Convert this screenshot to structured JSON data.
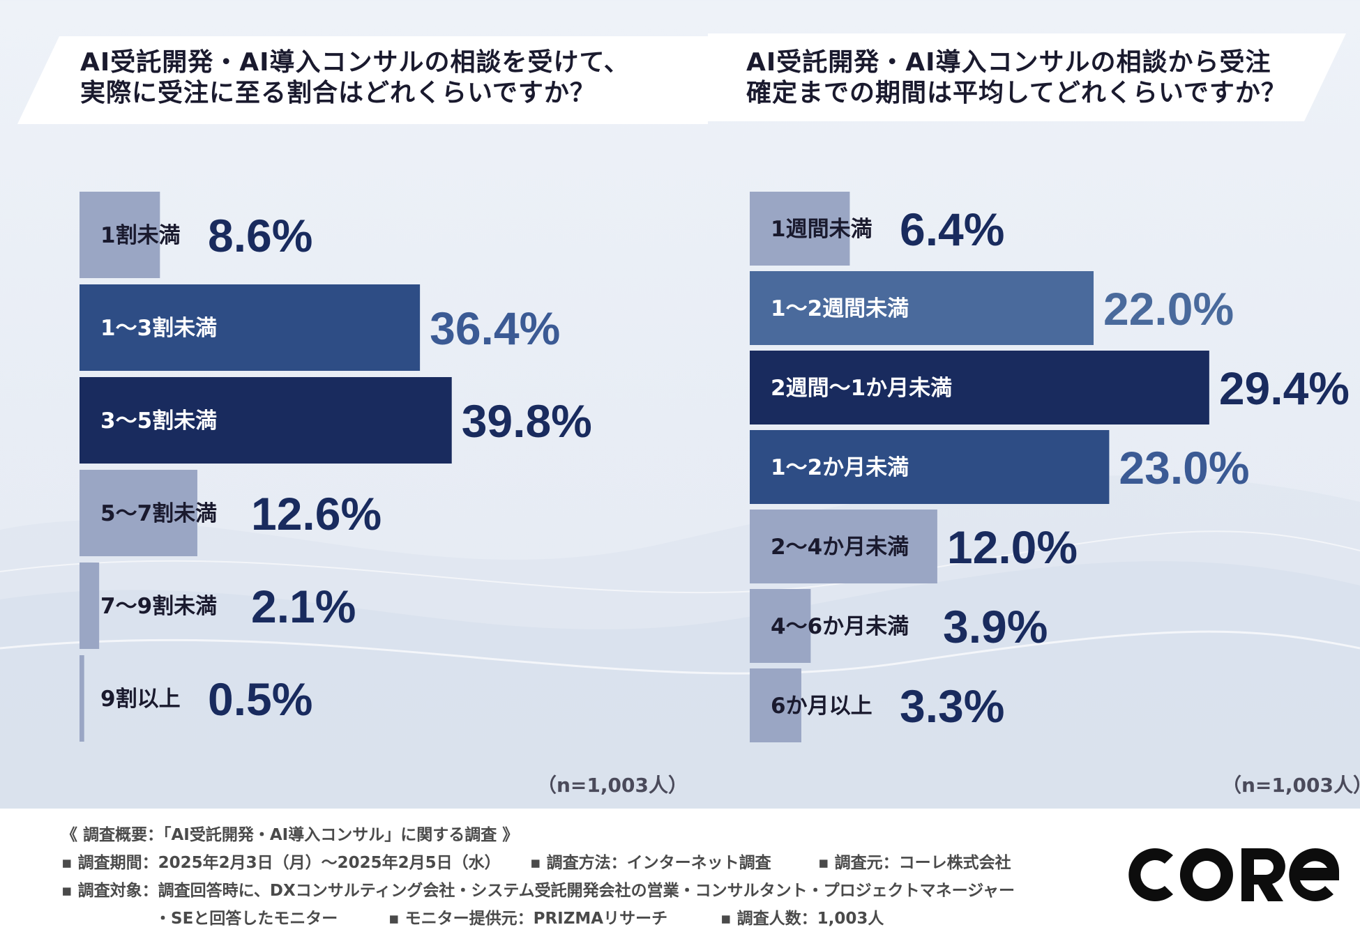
{
  "left_chart": {
    "title_line1": "AI受託開発・AI導入コンサルの相談を受けて、",
    "title_line2": "実際に受注に至る割合はどれくらいですか？",
    "n_label": "（n=1,003人）"
  },
  "right_chart": {
    "title_line1": "AI受託開発・AI導入コンサルの相談から受注",
    "title_line2": "確定までの期間は平均してどれくらいですか？",
    "n_label": "（n=1,003人）"
  },
  "chart_data": [
    {
      "type": "bar",
      "orientation": "horizontal",
      "title": "AI受託開発・AI導入コンサルの相談を受けて、実際に受注に至る割合はどれくらいですか？",
      "categories": [
        "1割未満",
        "1〜3割未満",
        "3〜5割未満",
        "5〜7割未満",
        "7〜9割未満",
        "9割以上"
      ],
      "values": [
        8.6,
        36.4,
        39.8,
        12.6,
        2.1,
        0.5
      ],
      "value_labels": [
        "8.6%",
        "36.4%",
        "39.8%",
        "12.6%",
        "2.1%",
        "0.5%"
      ],
      "bar_colors": [
        "#9aa6c4",
        "#2e4d85",
        "#192b5e",
        "#9aa6c4",
        "#9aa6c4",
        "#9aa6c4"
      ],
      "value_colors": [
        "#192b5e",
        "#3b5a94",
        "#192b5e",
        "#192b5e",
        "#192b5e",
        "#192b5e"
      ],
      "label_colors": [
        "#1a1a2e",
        "#ffffff",
        "#ffffff",
        "#1a1a2e",
        "#1a1a2e",
        "#1a1a2e"
      ],
      "xlim": [
        0,
        100
      ],
      "unit": "%"
    },
    {
      "type": "bar",
      "orientation": "horizontal",
      "title": "AI受託開発・AI導入コンサルの相談から受注確定までの期間は平均してどれくらいですか？",
      "categories": [
        "1週間未満",
        "1〜2週間未満",
        "2週間〜1か月未満",
        "1〜2か月未満",
        "2〜4か月未満",
        "4〜6か月未満",
        "6か月以上"
      ],
      "values": [
        6.4,
        22.0,
        29.4,
        23.0,
        12.0,
        3.9,
        3.3
      ],
      "value_labels": [
        "6.4%",
        "22.0%",
        "29.4%",
        "23.0%",
        "12.0%",
        "3.9%",
        "3.3%"
      ],
      "bar_colors": [
        "#9aa6c4",
        "#4a6a9c",
        "#192b5e",
        "#2e4d85",
        "#9aa6c4",
        "#9aa6c4",
        "#9aa6c4"
      ],
      "value_colors": [
        "#192b5e",
        "#4a6a9c",
        "#192b5e",
        "#3b5a94",
        "#192b5e",
        "#192b5e",
        "#192b5e"
      ],
      "label_colors": [
        "#1a1a2e",
        "#ffffff",
        "#ffffff",
        "#ffffff",
        "#1a1a2e",
        "#1a1a2e",
        "#1a1a2e"
      ],
      "xlim": [
        0,
        100
      ],
      "unit": "%"
    }
  ],
  "footer": {
    "heading": "《 調査概要：「AI受託開発・AI導入コンサル」に関する調査 》",
    "period": "▪ 調査期間：2025年2月3日（月）〜2025年2月5日（水）",
    "method": "▪ 調査方法：インターネット調査",
    "source": "▪ 調査元：コーレ株式会社",
    "target": "▪ 調査対象：調査回答時に、DXコンサルティング会社・システム受託開発会社の営業・コンサルタント・プロジェクトマネージャー",
    "target_cont": "・SEと回答したモニター",
    "provider": "▪ モニター提供元：PRIZMAリサーチ",
    "count": "▪ 調査人数：1,003人"
  },
  "logo": {
    "alt_text": "CORE",
    "color": "#0d0d0d"
  }
}
